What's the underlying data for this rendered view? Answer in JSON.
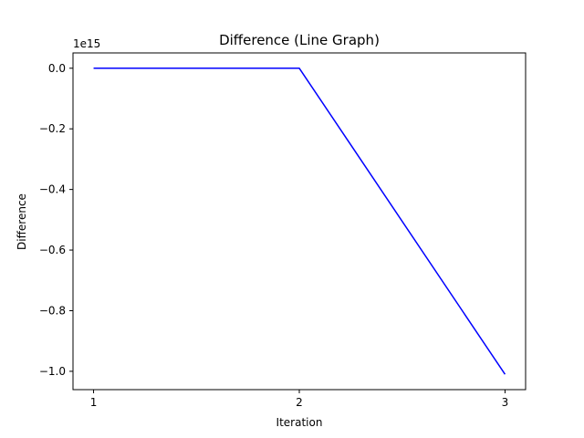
{
  "chart_data": {
    "type": "line",
    "title": "Difference (Line Graph)",
    "xlabel": "Iteration",
    "ylabel": "Difference",
    "offset_text": "1e15",
    "x": [
      1,
      2,
      3
    ],
    "x_ticks": [
      1,
      2,
      3
    ],
    "x_tick_labels": [
      "1",
      "2",
      "3"
    ],
    "y_ticks": [
      0.0,
      -0.2,
      -0.4,
      -0.6,
      -0.8,
      -1.0
    ],
    "y_tick_labels": [
      "0.0",
      "−0.2",
      "−0.4",
      "−0.6",
      "−0.8",
      "−1.0"
    ],
    "y_unit_multiplier": 1000000000000000.0,
    "series": [
      {
        "values": [
          0.0,
          0.0,
          -1.01
        ],
        "color": "#0000ff"
      }
    ],
    "xlim": [
      0.9,
      3.1
    ],
    "ylim": [
      -1.0605,
      0.0505
    ],
    "grid": false,
    "legend": "none"
  }
}
